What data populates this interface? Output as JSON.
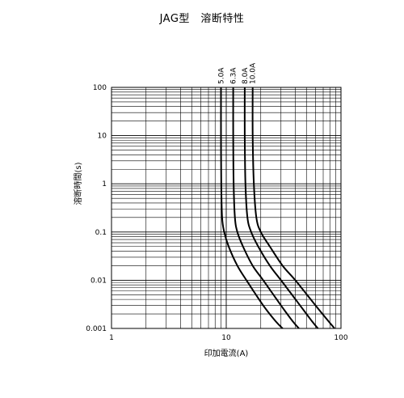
{
  "chart_data": {
    "type": "line",
    "title": "JAG型　溶断特性",
    "xlabel": "印加電流(A)",
    "ylabel": "溶断時間(s)",
    "xscale": "log",
    "yscale": "log",
    "xlim": [
      1,
      100
    ],
    "ylim": [
      0.001,
      100
    ],
    "x_tick_labels": [
      "1",
      "10",
      "100"
    ],
    "y_tick_labels": [
      "100",
      "10",
      "1",
      "0.1",
      "0.01",
      "0.001"
    ],
    "grid": true,
    "series": [
      {
        "name": "5.0A",
        "points": [
          [
            9.0,
            100
          ],
          [
            9.0,
            10
          ],
          [
            9.05,
            1
          ],
          [
            9.2,
            0.2
          ],
          [
            9.6,
            0.1
          ],
          [
            10.5,
            0.05
          ],
          [
            12.5,
            0.02
          ],
          [
            15,
            0.01
          ],
          [
            21,
            0.003
          ],
          [
            27,
            0.0014
          ],
          [
            31,
            0.001
          ]
        ]
      },
      {
        "name": "6.3A",
        "points": [
          [
            11.5,
            100
          ],
          [
            11.5,
            10
          ],
          [
            11.6,
            1
          ],
          [
            11.9,
            0.2
          ],
          [
            12.5,
            0.1
          ],
          [
            14,
            0.05
          ],
          [
            17,
            0.02
          ],
          [
            21,
            0.01
          ],
          [
            30,
            0.003
          ],
          [
            38,
            0.0014
          ],
          [
            43,
            0.001
          ]
        ]
      },
      {
        "name": "8.0A",
        "points": [
          [
            14.5,
            100
          ],
          [
            14.5,
            10
          ],
          [
            14.7,
            1
          ],
          [
            15.3,
            0.2
          ],
          [
            16.5,
            0.1
          ],
          [
            19,
            0.05
          ],
          [
            24,
            0.02
          ],
          [
            30,
            0.01
          ],
          [
            44,
            0.003
          ],
          [
            56,
            0.0014
          ],
          [
            63,
            0.001
          ]
        ]
      },
      {
        "name": "10.0A",
        "points": [
          [
            17,
            100
          ],
          [
            17,
            10
          ],
          [
            17.4,
            1
          ],
          [
            18.3,
            0.2
          ],
          [
            20,
            0.1
          ],
          [
            24,
            0.05
          ],
          [
            31,
            0.02
          ],
          [
            40,
            0.01
          ],
          [
            60,
            0.003
          ],
          [
            78,
            0.0014
          ],
          [
            88,
            0.001
          ]
        ]
      }
    ]
  }
}
